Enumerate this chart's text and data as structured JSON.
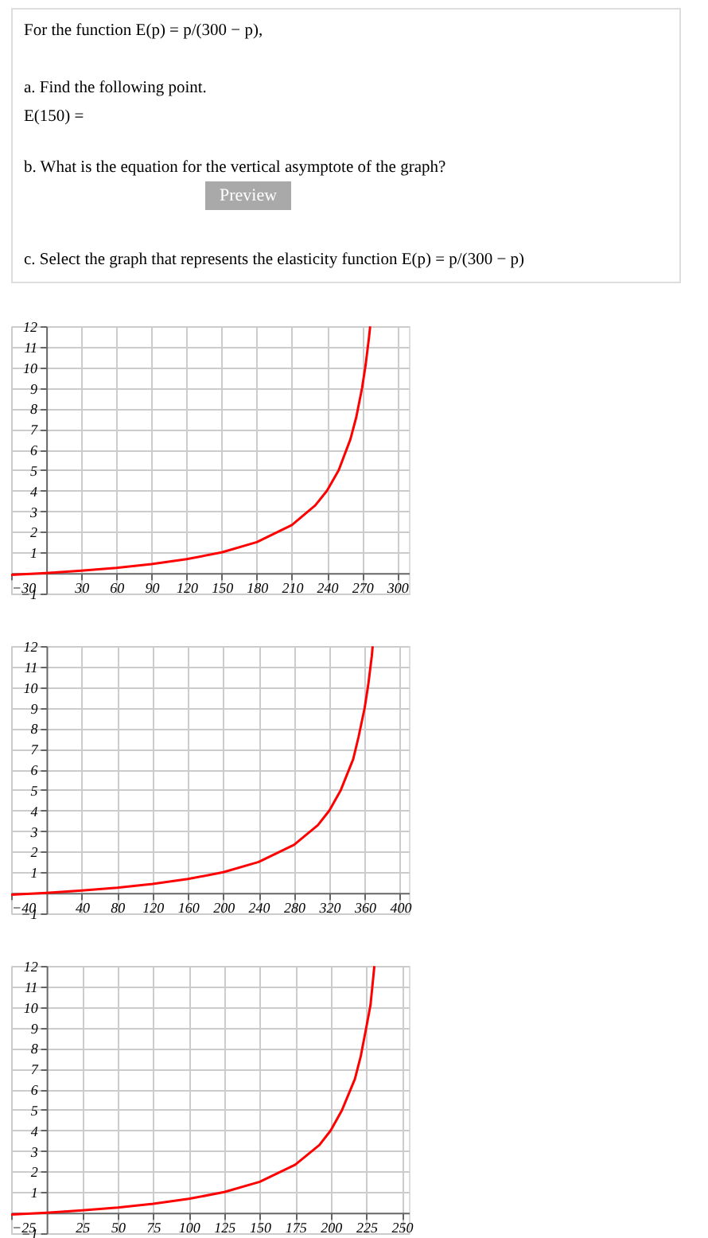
{
  "chart_data": [
    {
      "type": "other",
      "annotations": [
        "For the function E(p) = p/(300 − p),",
        "a. Find the following point.",
        "E(150) =",
        "b. What is the equation for the vertical asymptote of the graph?",
        "Preview",
        "c. Select the graph that represents the elasticity function E(p) = p/(300 − p)"
      ]
    },
    {
      "type": "line",
      "xlim": [
        -30,
        310
      ],
      "ylim": [
        -1,
        12
      ],
      "xticks": [
        -30,
        30,
        60,
        90,
        120,
        150,
        180,
        210,
        240,
        270,
        300
      ],
      "yticks": [
        -1,
        1,
        2,
        3,
        4,
        5,
        6,
        7,
        8,
        9,
        10,
        11,
        12
      ],
      "grid": true,
      "series": [
        {
          "color": "#ff0000",
          "x": [
            -30,
            0,
            30,
            60,
            90,
            120,
            150,
            180,
            210,
            230,
            240,
            250,
            260,
            265,
            270,
            273,
            276,
            276.9
          ],
          "values": [
            -0.09,
            0,
            0.11,
            0.25,
            0.43,
            0.67,
            1,
            1.5,
            2.33,
            3.29,
            4,
            5,
            6.5,
            7.57,
            9,
            10.11,
            11.5,
            11.99
          ]
        }
      ]
    },
    {
      "type": "line",
      "xlim": [
        -40,
        410
      ],
      "ylim": [
        -1,
        12
      ],
      "xticks": [
        -40,
        40,
        80,
        120,
        160,
        200,
        240,
        280,
        320,
        360,
        400
      ],
      "yticks": [
        -1,
        1,
        2,
        3,
        4,
        5,
        6,
        7,
        8,
        9,
        10,
        11,
        12
      ],
      "grid": true,
      "series": [
        {
          "color": "#ff0000",
          "x": [
            -40,
            0,
            40,
            80,
            120,
            160,
            200,
            240,
            280,
            307,
            320,
            333,
            347,
            353,
            360,
            364,
            368,
            369
          ],
          "values": [
            -0.09,
            0,
            0.11,
            0.25,
            0.43,
            0.67,
            1,
            1.5,
            2.33,
            3.29,
            4,
            5,
            6.5,
            7.57,
            9,
            10.11,
            11.5,
            11.99
          ]
        }
      ]
    },
    {
      "type": "line",
      "xlim": [
        -25,
        255
      ],
      "ylim": [
        -1,
        12
      ],
      "xticks": [
        -25,
        25,
        50,
        75,
        100,
        125,
        150,
        175,
        200,
        225,
        250
      ],
      "yticks": [
        -1,
        1,
        2,
        3,
        4,
        5,
        6,
        7,
        8,
        9,
        10,
        11,
        12
      ],
      "grid": true,
      "series": [
        {
          "color": "#ff0000",
          "x": [
            -25,
            0,
            25,
            50,
            75,
            100,
            125,
            150,
            175,
            192,
            200,
            208,
            217,
            221,
            225,
            228,
            230,
            230.7
          ],
          "values": [
            -0.09,
            0,
            0.11,
            0.25,
            0.43,
            0.67,
            1,
            1.5,
            2.33,
            3.29,
            4,
            5,
            6.5,
            7.57,
            9,
            10.11,
            11.5,
            11.99
          ]
        }
      ]
    }
  ]
}
